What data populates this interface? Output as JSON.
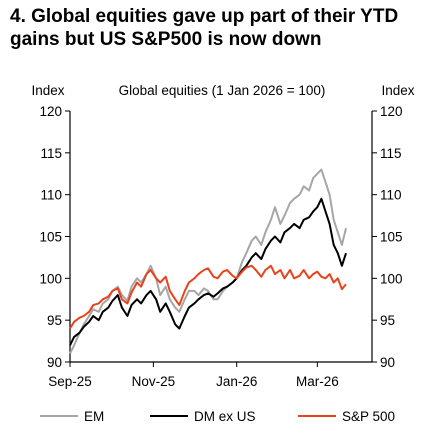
{
  "title_lines": [
    "4. Global equities gave up part of their YTD",
    "gains but US S&P500 is now down"
  ],
  "chart_data": {
    "type": "line",
    "title": "4. Global equities gave up part of their YTD gains but US S&P500 is now down",
    "subtitle": "Global equities (1 Jan 2026 = 100)",
    "ylabel_left": "Index",
    "ylabel_right": "Index",
    "ylim": [
      90,
      120
    ],
    "yticks": [
      90,
      95,
      100,
      105,
      110,
      115,
      120
    ],
    "xlim": [
      "2025-09-01",
      "2026-04-10"
    ],
    "xticks": [
      {
        "date": "2025-09-01",
        "label": "Sep-25"
      },
      {
        "date": "2025-11-01",
        "label": "Nov-25"
      },
      {
        "date": "2026-01-01",
        "label": "Jan-26"
      },
      {
        "date": "2026-03-01",
        "label": "Mar-26"
      }
    ],
    "grid": false,
    "legend_position": "bottom",
    "series": [
      {
        "name": "EM",
        "color": "#a6a6a6",
        "points": [
          [
            "2025-09-01",
            91.0
          ],
          [
            "2025-09-04",
            92.0
          ],
          [
            "2025-09-08",
            93.5
          ],
          [
            "2025-09-11",
            94.5
          ],
          [
            "2025-09-15",
            95.5
          ],
          [
            "2025-09-18",
            96.3
          ],
          [
            "2025-09-22",
            96.0
          ],
          [
            "2025-09-25",
            97.0
          ],
          [
            "2025-09-29",
            97.5
          ],
          [
            "2025-10-02",
            98.5
          ],
          [
            "2025-10-06",
            99.0
          ],
          [
            "2025-10-09",
            98.0
          ],
          [
            "2025-10-13",
            97.3
          ],
          [
            "2025-10-16",
            99.0
          ],
          [
            "2025-10-20",
            100.0
          ],
          [
            "2025-10-23",
            99.5
          ],
          [
            "2025-10-27",
            100.5
          ],
          [
            "2025-10-30",
            101.5
          ],
          [
            "2025-11-03",
            100.0
          ],
          [
            "2025-11-06",
            98.0
          ],
          [
            "2025-11-10",
            99.0
          ],
          [
            "2025-11-13",
            97.5
          ],
          [
            "2025-11-17",
            96.5
          ],
          [
            "2025-11-20",
            96.0
          ],
          [
            "2025-11-24",
            97.5
          ],
          [
            "2025-11-27",
            98.5
          ],
          [
            "2025-12-01",
            98.5
          ],
          [
            "2025-12-04",
            98.0
          ],
          [
            "2025-12-08",
            98.8
          ],
          [
            "2025-12-11",
            98.5
          ],
          [
            "2025-12-15",
            97.5
          ],
          [
            "2025-12-18",
            97.5
          ],
          [
            "2025-12-22",
            98.5
          ],
          [
            "2025-12-25",
            99.0
          ],
          [
            "2025-12-29",
            99.5
          ],
          [
            "2026-01-01",
            100.0
          ],
          [
            "2026-01-05",
            102.0
          ],
          [
            "2026-01-08",
            103.0
          ],
          [
            "2026-01-12",
            104.5
          ],
          [
            "2026-01-15",
            105.0
          ],
          [
            "2026-01-19",
            104.0
          ],
          [
            "2026-01-22",
            105.5
          ],
          [
            "2026-01-26",
            107.0
          ],
          [
            "2026-01-29",
            108.5
          ],
          [
            "2026-02-02",
            106.5
          ],
          [
            "2026-02-05",
            107.5
          ],
          [
            "2026-02-09",
            109.0
          ],
          [
            "2026-02-12",
            109.5
          ],
          [
            "2026-02-16",
            110.0
          ],
          [
            "2026-02-19",
            111.0
          ],
          [
            "2026-02-23",
            110.5
          ],
          [
            "2026-02-26",
            112.0
          ],
          [
            "2026-03-01",
            112.5
          ],
          [
            "2026-03-04",
            113.0
          ],
          [
            "2026-03-07",
            111.5
          ],
          [
            "2026-03-10",
            110.0
          ],
          [
            "2026-03-13",
            107.0
          ],
          [
            "2026-03-16",
            105.5
          ],
          [
            "2026-03-19",
            104.0
          ],
          [
            "2026-03-22",
            106.0
          ]
        ]
      },
      {
        "name": "DM ex US",
        "color": "#000000",
        "points": [
          [
            "2025-09-01",
            92.0
          ],
          [
            "2025-09-04",
            93.0
          ],
          [
            "2025-09-08",
            93.5
          ],
          [
            "2025-09-11",
            94.2
          ],
          [
            "2025-09-15",
            94.8
          ],
          [
            "2025-09-18",
            95.5
          ],
          [
            "2025-09-22",
            95.0
          ],
          [
            "2025-09-25",
            96.0
          ],
          [
            "2025-09-29",
            96.5
          ],
          [
            "2025-10-02",
            97.3
          ],
          [
            "2025-10-06",
            98.0
          ],
          [
            "2025-10-09",
            96.5
          ],
          [
            "2025-10-13",
            95.5
          ],
          [
            "2025-10-16",
            96.8
          ],
          [
            "2025-10-20",
            97.5
          ],
          [
            "2025-10-23",
            97.0
          ],
          [
            "2025-10-27",
            98.0
          ],
          [
            "2025-10-30",
            98.5
          ],
          [
            "2025-11-03",
            97.5
          ],
          [
            "2025-11-06",
            96.0
          ],
          [
            "2025-11-10",
            97.0
          ],
          [
            "2025-11-13",
            96.0
          ],
          [
            "2025-11-17",
            94.5
          ],
          [
            "2025-11-20",
            94.0
          ],
          [
            "2025-11-24",
            95.5
          ],
          [
            "2025-11-27",
            96.5
          ],
          [
            "2025-12-01",
            97.0
          ],
          [
            "2025-12-04",
            97.5
          ],
          [
            "2025-12-08",
            98.0
          ],
          [
            "2025-12-11",
            98.2
          ],
          [
            "2025-12-15",
            97.8
          ],
          [
            "2025-12-18",
            98.2
          ],
          [
            "2025-12-22",
            98.8
          ],
          [
            "2025-12-25",
            99.0
          ],
          [
            "2025-12-29",
            99.5
          ],
          [
            "2026-01-01",
            100.0
          ],
          [
            "2026-01-05",
            101.0
          ],
          [
            "2026-01-08",
            101.5
          ],
          [
            "2026-01-12",
            102.5
          ],
          [
            "2026-01-15",
            103.0
          ],
          [
            "2026-01-19",
            102.3
          ],
          [
            "2026-01-22",
            103.5
          ],
          [
            "2026-01-26",
            104.5
          ],
          [
            "2026-01-29",
            105.0
          ],
          [
            "2026-02-02",
            104.3
          ],
          [
            "2026-02-05",
            105.5
          ],
          [
            "2026-02-09",
            106.0
          ],
          [
            "2026-02-12",
            106.5
          ],
          [
            "2026-02-16",
            106.0
          ],
          [
            "2026-02-19",
            107.0
          ],
          [
            "2026-02-23",
            107.3
          ],
          [
            "2026-02-26",
            108.0
          ],
          [
            "2026-03-01",
            108.5
          ],
          [
            "2026-03-04",
            109.5
          ],
          [
            "2026-03-07",
            108.0
          ],
          [
            "2026-03-10",
            106.5
          ],
          [
            "2026-03-13",
            104.0
          ],
          [
            "2026-03-16",
            103.0
          ],
          [
            "2026-03-19",
            101.5
          ],
          [
            "2026-03-22",
            103.0
          ]
        ]
      },
      {
        "name": "S&P 500",
        "color": "#e8431c",
        "points": [
          [
            "2025-09-01",
            94.0
          ],
          [
            "2025-09-04",
            94.8
          ],
          [
            "2025-09-08",
            95.3
          ],
          [
            "2025-09-11",
            95.5
          ],
          [
            "2025-09-15",
            96.0
          ],
          [
            "2025-09-18",
            96.8
          ],
          [
            "2025-09-22",
            97.0
          ],
          [
            "2025-09-25",
            97.5
          ],
          [
            "2025-09-29",
            97.8
          ],
          [
            "2025-10-02",
            98.5
          ],
          [
            "2025-10-06",
            98.8
          ],
          [
            "2025-10-09",
            97.5
          ],
          [
            "2025-10-13",
            97.0
          ],
          [
            "2025-10-16",
            98.3
          ],
          [
            "2025-10-20",
            99.5
          ],
          [
            "2025-10-23",
            99.0
          ],
          [
            "2025-10-27",
            100.5
          ],
          [
            "2025-10-30",
            101.0
          ],
          [
            "2025-11-03",
            100.0
          ],
          [
            "2025-11-06",
            99.5
          ],
          [
            "2025-11-10",
            100.2
          ],
          [
            "2025-11-13",
            98.5
          ],
          [
            "2025-11-17",
            97.5
          ],
          [
            "2025-11-20",
            96.8
          ],
          [
            "2025-11-24",
            98.5
          ],
          [
            "2025-11-27",
            99.5
          ],
          [
            "2025-12-01",
            100.0
          ],
          [
            "2025-12-04",
            100.5
          ],
          [
            "2025-12-08",
            101.0
          ],
          [
            "2025-12-11",
            101.2
          ],
          [
            "2025-12-15",
            100.2
          ],
          [
            "2025-12-18",
            100.0
          ],
          [
            "2025-12-22",
            100.8
          ],
          [
            "2025-12-25",
            101.0
          ],
          [
            "2025-12-29",
            100.3
          ],
          [
            "2026-01-01",
            100.0
          ],
          [
            "2026-01-05",
            100.8
          ],
          [
            "2026-01-08",
            101.3
          ],
          [
            "2026-01-12",
            101.5
          ],
          [
            "2026-01-15",
            101.0
          ],
          [
            "2026-01-19",
            100.2
          ],
          [
            "2026-01-22",
            101.0
          ],
          [
            "2026-01-26",
            101.5
          ],
          [
            "2026-01-29",
            100.5
          ],
          [
            "2026-02-02",
            101.0
          ],
          [
            "2026-02-05",
            100.0
          ],
          [
            "2026-02-09",
            101.0
          ],
          [
            "2026-02-12",
            100.0
          ],
          [
            "2026-02-16",
            100.3
          ],
          [
            "2026-02-19",
            101.0
          ],
          [
            "2026-02-23",
            100.0
          ],
          [
            "2026-02-26",
            100.5
          ],
          [
            "2026-03-01",
            100.8
          ],
          [
            "2026-03-04",
            100.2
          ],
          [
            "2026-03-07",
            100.0
          ],
          [
            "2026-03-10",
            100.5
          ],
          [
            "2026-03-13",
            99.5
          ],
          [
            "2026-03-16",
            100.0
          ],
          [
            "2026-03-19",
            98.7
          ],
          [
            "2026-03-22",
            99.3
          ]
        ]
      }
    ]
  }
}
